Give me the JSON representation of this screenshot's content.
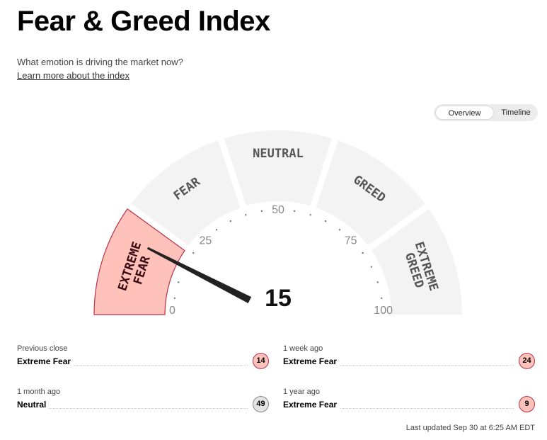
{
  "header": {
    "title": "Fear & Greed Index",
    "subtitle": "What emotion is driving the market now?",
    "learn_more": "Learn more about the index"
  },
  "view_toggle": {
    "options": [
      "Overview",
      "Timeline"
    ],
    "selected": "Overview"
  },
  "gauge": {
    "value": 15,
    "value_label": "15",
    "segments": [
      {
        "line1": "EXTREME",
        "line2": "FEAR",
        "active": true
      },
      {
        "label": "FEAR",
        "active": false
      },
      {
        "label": "NEUTRAL",
        "active": false
      },
      {
        "label": "GREED",
        "active": false
      },
      {
        "line1": "EXTREME",
        "line2": "GREED",
        "active": false
      }
    ],
    "scale_labels": [
      "0",
      "25",
      "50",
      "75",
      "100"
    ],
    "colors": {
      "active_fill": "#ffc2bb",
      "active_stroke": "#b5334a",
      "inactive_fill": "#f3f3f3",
      "needle": "#222222"
    }
  },
  "history": [
    {
      "label": "Previous close",
      "rating": "Extreme Fear",
      "value": "14",
      "status": "fear"
    },
    {
      "label": "1 week ago",
      "rating": "Extreme Fear",
      "value": "24",
      "status": "fear"
    },
    {
      "label": "1 month ago",
      "rating": "Neutral",
      "value": "49",
      "status": "neutral"
    },
    {
      "label": "1 year ago",
      "rating": "Extreme Fear",
      "value": "9",
      "status": "fear"
    }
  ],
  "last_updated": "Last updated Sep 30 at 6:25 AM EDT"
}
